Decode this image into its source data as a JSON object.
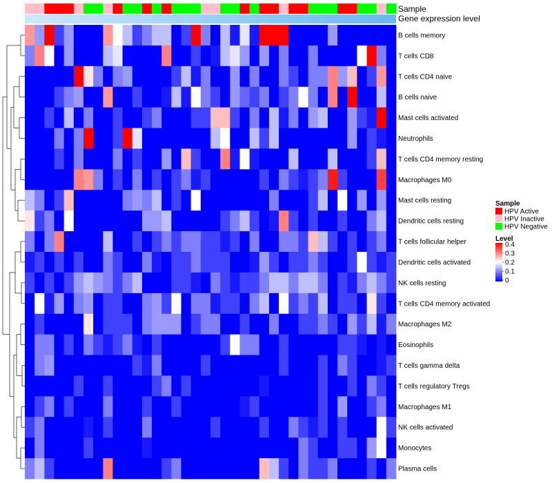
{
  "chart_data": {
    "type": "heatmap",
    "annotation_tracks": [
      "Sample",
      "Gene expression level"
    ],
    "rows": [
      "B cells memory",
      "T cells CD8",
      "T cells CD4 naive",
      "B cells naive",
      "Mast cells activated",
      "Neutrophils",
      "T cells CD4 memory resting",
      "Macrophages M0",
      "Mast cells resting",
      "Dendritic cells resting",
      "T cells follicular helper",
      "Dendritic cells activated",
      "NK cells resting",
      "T cells CD4 memory activated",
      "Macrophages M2",
      "Eosinophils",
      "T cells gamma delta",
      "T cells regulatory  Tregs",
      "Macrophages M1",
      "NK cells activated",
      "Monocytes",
      "Plasma cells"
    ],
    "columns": 38,
    "sample_groups": [
      "Inactive",
      "Inactive",
      "Active",
      "Active",
      "Active",
      "Inactive",
      "Negative",
      "Negative",
      "Inactive",
      "Active",
      "Negative",
      "Negative",
      "Active",
      "Negative",
      "Active",
      "Negative",
      "Negative",
      "Negative",
      "Inactive",
      "Inactive",
      "Negative",
      "Negative",
      "Active",
      "Negative",
      "Active",
      "Active",
      "Inactive",
      "Active",
      "Active",
      "Negative",
      "Negative",
      "Negative",
      "Active",
      "Active",
      "Negative",
      "Negative",
      "Inactive",
      "Negative"
    ],
    "values": [
      [
        0.28,
        0.12,
        0.4,
        0.05,
        0.12,
        0,
        0,
        0,
        0.28,
        0.2,
        0.15,
        0.05,
        0.1,
        0.15,
        0.15,
        0,
        0.05,
        0.4,
        0.1,
        0,
        0.15,
        0.02,
        0.18,
        0.02,
        0.42,
        0.42,
        0.42,
        0,
        0,
        0,
        0,
        0.12,
        0,
        0,
        0,
        0,
        0,
        0
      ],
      [
        0.1,
        0.3,
        0.2,
        0,
        0.12,
        0,
        0,
        0,
        0.15,
        0.18,
        0,
        0,
        0,
        0,
        0.3,
        0,
        0,
        0.05,
        0,
        0.02,
        0.15,
        0.18,
        0.12,
        0,
        0.12,
        0,
        0.1,
        0,
        0,
        0.1,
        0,
        0,
        0,
        0,
        0.2,
        0.4,
        0.1,
        0
      ],
      [
        0,
        0,
        0,
        0,
        0,
        0.4,
        0.22,
        0.1,
        0,
        0.1,
        0.12,
        0,
        0,
        0,
        0,
        0.05,
        0.15,
        0.02,
        0.1,
        0,
        0,
        0.12,
        0,
        0.1,
        0,
        0,
        0.1,
        0.05,
        0,
        0.1,
        0.1,
        0.3,
        0.12,
        0.25,
        0,
        0.05,
        0.28,
        0
      ],
      [
        0,
        0,
        0,
        0.05,
        0.1,
        0.12,
        0,
        0,
        0.28,
        0,
        0,
        0.05,
        0,
        0,
        0.02,
        0.15,
        0.02,
        0.2,
        0.1,
        0.05,
        0,
        0.12,
        0.08,
        0.05,
        0.1,
        0,
        0.05,
        0.1,
        0.2,
        0.1,
        0,
        0.3,
        0,
        0.4,
        0,
        0,
        0.15,
        0
      ],
      [
        0,
        0,
        0.05,
        0,
        0.15,
        0,
        0.1,
        0,
        0,
        0.05,
        0,
        0,
        0.05,
        0.1,
        0,
        0,
        0,
        0.05,
        0.05,
        0.25,
        0.25,
        0.05,
        0,
        0.1,
        0,
        0.15,
        0.02,
        0.1,
        0,
        0.12,
        0.15,
        0,
        0,
        0.12,
        0.05,
        0.02,
        0.4,
        0
      ],
      [
        0,
        0,
        0,
        0.1,
        0,
        0.1,
        0.4,
        0,
        0,
        0.05,
        0.4,
        0.18,
        0,
        0,
        0,
        0,
        0,
        0,
        0,
        0.15,
        0.2,
        0,
        0,
        0.15,
        0.05,
        0.15,
        0,
        0,
        0,
        0,
        0,
        0,
        0,
        0.12,
        0,
        0.05,
        0.02,
        0
      ],
      [
        0,
        0,
        0,
        0.05,
        0,
        0.1,
        0,
        0,
        0,
        0.1,
        0,
        0.05,
        0,
        0,
        0.12,
        0,
        0.25,
        0.05,
        0,
        0,
        0.3,
        0.02,
        0.2,
        0.02,
        0,
        0,
        0,
        0.15,
        0,
        0,
        0,
        0.15,
        0,
        0,
        0,
        0.05,
        0.25,
        0
      ],
      [
        0,
        0,
        0,
        0,
        0,
        0.3,
        0.28,
        0.1,
        0,
        0.05,
        0,
        0.1,
        0,
        0.05,
        0,
        0.05,
        0.1,
        0.02,
        0.05,
        0,
        0,
        0,
        0,
        0,
        0.05,
        0,
        0.1,
        0.05,
        0.02,
        0.05,
        0.1,
        0.38,
        0.05,
        0,
        0,
        0,
        0.35,
        0
      ],
      [
        0.15,
        0.1,
        0,
        0.05,
        0.25,
        0,
        0,
        0,
        0,
        0,
        0.1,
        0.12,
        0.1,
        0.15,
        0,
        0.05,
        0,
        0.2,
        0,
        0,
        0,
        0,
        0,
        0,
        0,
        0.1,
        0,
        0,
        0,
        0.05,
        0.15,
        0,
        0.2,
        0,
        0.12,
        0,
        0.12,
        0
      ],
      [
        0.22,
        0.05,
        0.1,
        0,
        0.2,
        0,
        0,
        0,
        0,
        0,
        0,
        0,
        0.12,
        0.12,
        0.15,
        0,
        0,
        0,
        0,
        0,
        0.05,
        0.1,
        0.15,
        0.05,
        0,
        0.02,
        0.3,
        0.05,
        0,
        0.05,
        0,
        0,
        0.05,
        0,
        0,
        0.1,
        0.15,
        0
      ],
      [
        0.1,
        0,
        0.1,
        0.3,
        0,
        0,
        0,
        0,
        0.15,
        0,
        0,
        0.05,
        0,
        0.05,
        0.1,
        0.05,
        0.1,
        0.1,
        0.05,
        0.05,
        0.02,
        0.05,
        0,
        0.1,
        0,
        0,
        0.1,
        0.1,
        0.05,
        0.25,
        0.15,
        0.05,
        0,
        0.05,
        0,
        0.05,
        0.1,
        0
      ],
      [
        0.02,
        0.05,
        0,
        0.05,
        0,
        0.05,
        0,
        0,
        0.1,
        0.05,
        0,
        0,
        0.1,
        0.02,
        0,
        0.05,
        0.05,
        0.1,
        0.05,
        0.05,
        0.05,
        0,
        0,
        0.02,
        0.12,
        0.05,
        0,
        0.05,
        0.05,
        0.1,
        0.05,
        0,
        0,
        0.05,
        0.2,
        0.05,
        0.02,
        0.05
      ],
      [
        0.05,
        0,
        0.05,
        0,
        0.05,
        0.12,
        0.15,
        0.12,
        0.1,
        0.05,
        0.1,
        0.15,
        0,
        0,
        0,
        0.05,
        0.05,
        0.02,
        0,
        0.1,
        0.05,
        0.02,
        0.05,
        0.05,
        0.1,
        0.15,
        0.15,
        0.1,
        0.15,
        0.15,
        0.1,
        0,
        0.05,
        0.02,
        0.1,
        0.15,
        0.1,
        0.05
      ],
      [
        0,
        0.2,
        0.02,
        0.12,
        0,
        0.1,
        0.12,
        0,
        0.05,
        0.05,
        0,
        0,
        0.1,
        0.12,
        0.05,
        0.2,
        0,
        0.1,
        0.1,
        0.02,
        0.05,
        0.05,
        0,
        0.1,
        0.15,
        0,
        0.2,
        0.05,
        0.1,
        0.05,
        0.15,
        0,
        0.05,
        0.05,
        0,
        0.22,
        0.05,
        0
      ],
      [
        0,
        0.05,
        0,
        0,
        0,
        0,
        0.22,
        0,
        0.05,
        0.05,
        0.05,
        0,
        0.1,
        0.12,
        0.12,
        0.12,
        0,
        0.05,
        0.1,
        0.1,
        0,
        0,
        0.05,
        0,
        0,
        0.1,
        0,
        0,
        0.05,
        0.05,
        0.1,
        0.05,
        0,
        0.12,
        0.05,
        0.15,
        0.02,
        0.1
      ],
      [
        0,
        0.1,
        0.1,
        0,
        0.05,
        0,
        0.1,
        0.05,
        0.02,
        0.05,
        0.1,
        0.02,
        0,
        0.05,
        0,
        0,
        0,
        0,
        0,
        0,
        0.05,
        0.2,
        0.1,
        0.1,
        0,
        0,
        0.05,
        0,
        0,
        0,
        0,
        0,
        0.05,
        0.05,
        0.02,
        0,
        0.02,
        0
      ],
      [
        0,
        0.1,
        0.12,
        0,
        0,
        0,
        0,
        0,
        0,
        0,
        0,
        0.05,
        0.02,
        0.1,
        0,
        0,
        0,
        0,
        0.05,
        0,
        0,
        0,
        0,
        0,
        0,
        0,
        0.05,
        0,
        0,
        0,
        0.05,
        0,
        0.1,
        0.05,
        0,
        0,
        0.02,
        0.05
      ],
      [
        0,
        0,
        0,
        0,
        0,
        0.05,
        0,
        0,
        0.05,
        0,
        0,
        0,
        0,
        0.05,
        0.1,
        0,
        0.05,
        0,
        0,
        0,
        0,
        0,
        0,
        0,
        0.02,
        0,
        0,
        0,
        0,
        0,
        0.05,
        0,
        0,
        0.05,
        0,
        0.1,
        0.05,
        0
      ],
      [
        0,
        0.05,
        0.1,
        0,
        0.05,
        0,
        0,
        0,
        0.1,
        0,
        0,
        0,
        0.05,
        0,
        0,
        0.05,
        0,
        0,
        0,
        0,
        0,
        0,
        0.02,
        0.05,
        0,
        0,
        0,
        0,
        0,
        0,
        0.05,
        0,
        0.12,
        0,
        0,
        0.05,
        0.1,
        0
      ],
      [
        0.05,
        0.1,
        0,
        0,
        0,
        0,
        0.02,
        0,
        0.05,
        0,
        0,
        0,
        0.1,
        0,
        0,
        0,
        0,
        0,
        0,
        0.05,
        0,
        0,
        0,
        0,
        0.05,
        0,
        0,
        0.1,
        0.05,
        0.02,
        0.05,
        0,
        0.05,
        0,
        0,
        0,
        0.2,
        0.05
      ],
      [
        0,
        0.1,
        0,
        0,
        0,
        0,
        0.05,
        0,
        0,
        0,
        0,
        0,
        0.02,
        0,
        0,
        0,
        0,
        0,
        0,
        0,
        0,
        0,
        0,
        0,
        0,
        0,
        0,
        0,
        0.1,
        0.05,
        0,
        0,
        0.05,
        0.05,
        0,
        0.12,
        0.2,
        0
      ],
      [
        0.1,
        0.15,
        0.05,
        0,
        0,
        0,
        0,
        0,
        0.3,
        0,
        0,
        0,
        0,
        0,
        0.05,
        0.1,
        0,
        0,
        0,
        0,
        0,
        0,
        0,
        0,
        0.25,
        0.15,
        0.05,
        0,
        0.1,
        0.05,
        0.05,
        0.1,
        0,
        0,
        0,
        0.05,
        0,
        0.1
      ]
    ],
    "legend": {
      "sample_title": "Sample",
      "sample_entries": [
        {
          "label": "HPV Active",
          "color": "#ff0000"
        },
        {
          "label": "HPV Inactive",
          "color": "#ffc0cb"
        },
        {
          "label": "HPV Negative",
          "color": "#00ff00"
        }
      ],
      "level_title": "Level",
      "level_ticks": [
        "0.4",
        "0.3",
        "0.2",
        "0.1",
        "0"
      ],
      "level_range": [
        0,
        0.4
      ]
    },
    "colors": {
      "low": "#0000ff",
      "mid": "#ffffff",
      "high": "#ff0000",
      "expression_bar": "#66b8f0",
      "expression_bar_light": "#cfe8fb"
    }
  }
}
